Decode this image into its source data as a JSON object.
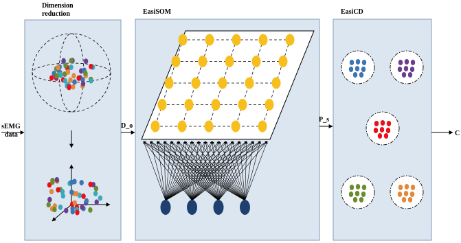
{
  "panels": {
    "dimension_reduction": {
      "title_line1": "Dimension",
      "title_line2": "reduction"
    },
    "easisom": {
      "title": "EasiSOM"
    },
    "easicd": {
      "title": "EasiCD"
    }
  },
  "flow_labels": {
    "input_line1": "sEMG",
    "input_line2": "data",
    "d_o": "D_o",
    "p_s": "P_s",
    "output": "C"
  },
  "colors": {
    "panel_fill": "#dce6f1",
    "panel_border": "#7f9db9",
    "som_node": "#f7bf1e",
    "input_neuron": "#1f3f6e",
    "cluster_blue": "#3f74b3",
    "cluster_purple": "#6a3d8f",
    "cluster_red": "#e8101a",
    "cluster_green": "#6a8c2f",
    "cluster_orange": "#e08a3a",
    "scatter_teal": "#39a9b8"
  },
  "som_grid": {
    "rows": 5,
    "cols": 5
  },
  "input_neurons": {
    "count": 4
  },
  "clusters": [
    {
      "name": "blue",
      "color": "#3f74b3"
    },
    {
      "name": "purple",
      "color": "#6a3d8f"
    },
    {
      "name": "red",
      "color": "#e8101a"
    },
    {
      "name": "green",
      "color": "#6a8c2f"
    },
    {
      "name": "orange",
      "color": "#e08a3a"
    }
  ]
}
